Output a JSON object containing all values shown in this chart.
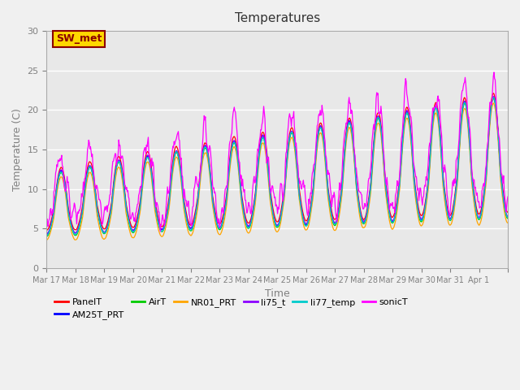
{
  "title": "Temperatures",
  "xlabel": "Time",
  "ylabel": "Temperature (C)",
  "ylim": [
    0,
    30
  ],
  "annotation_text": "SW_met",
  "annotation_color": "#8B0000",
  "annotation_bg": "#FFD700",
  "background_color": "#E8E8E8",
  "series": [
    {
      "label": "PanelT",
      "color": "#FF0000"
    },
    {
      "label": "AM25T_PRT",
      "color": "#0000FF"
    },
    {
      "label": "AirT",
      "color": "#00CC00"
    },
    {
      "label": "NR01_PRT",
      "color": "#FFA500"
    },
    {
      "label": "li75_t",
      "color": "#8B00FF"
    },
    {
      "label": "li77_temp",
      "color": "#00CCCC"
    },
    {
      "label": "sonicT",
      "color": "#FF00FF"
    }
  ],
  "n_days": 16,
  "samples_per_day": 48,
  "x_tick_labels": [
    "Mar 17",
    "Mar 18",
    "Mar 19",
    "Mar 20",
    "Mar 21",
    "Mar 22",
    "Mar 23",
    "Mar 24",
    "Mar 25",
    "Mar 26",
    "Mar 27",
    "Mar 28",
    "Mar 29",
    "Mar 30",
    "Mar 31",
    "Apr 1",
    ""
  ],
  "yticks": [
    0,
    5,
    10,
    15,
    20,
    25,
    30
  ],
  "grid_color": "#FFFFFF",
  "tick_color": "#808080",
  "fig_bg": "#F0F0F0"
}
